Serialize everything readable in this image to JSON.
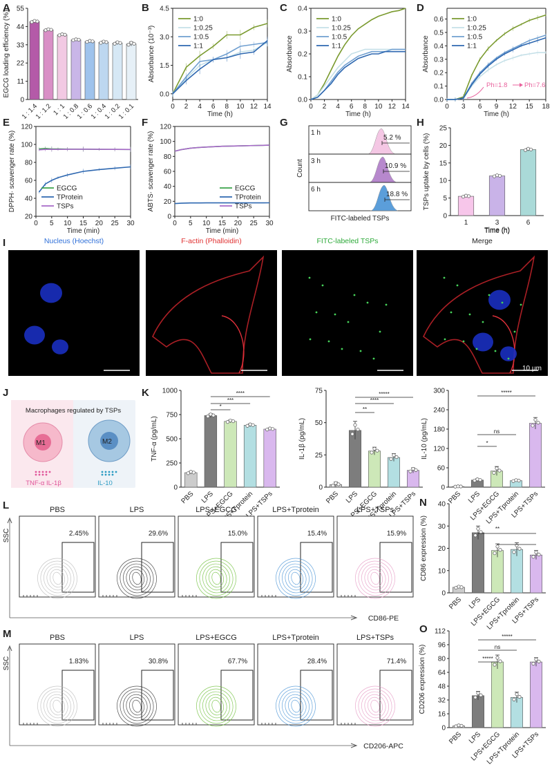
{
  "chart_data": [
    {
      "panel": "A",
      "type": "bar",
      "ylabel": "EGCG loading efficiency (%)",
      "categories": [
        "1 : 1.4",
        "1 : 1.2",
        "1 : 1",
        "1 : 0.8",
        "1 : 0.6",
        "1 : 0.4",
        "1 : 0.2",
        "1 : 0.1"
      ],
      "values": [
        47,
        42,
        39,
        36,
        35,
        34.5,
        34,
        33.5
      ],
      "errors": [
        0.7,
        0.6,
        0.6,
        0.5,
        0.6,
        0.8,
        0.9,
        1.2
      ],
      "ylim": [
        0,
        55
      ],
      "yticks": [
        "0",
        "11",
        "22",
        "33",
        "44",
        "55"
      ],
      "colors": [
        "#b45aa8",
        "#d98fc6",
        "#f2c9e3",
        "#c9b6e8",
        "#9fc3ec",
        "#bdd7f0",
        "#d6e8f5",
        "#e6f0f7"
      ]
    },
    {
      "panel": "B",
      "type": "line",
      "xlabel": "Time (h)",
      "ylabel": "Absorbance (10⁻³)",
      "x": [
        0,
        2,
        4,
        6,
        8,
        10,
        12,
        14
      ],
      "xlim": [
        0,
        14
      ],
      "ylim": [
        -0.3,
        4.5
      ],
      "xticks": [
        "0",
        "2",
        "4",
        "6",
        "8",
        "10",
        "12",
        "14"
      ],
      "yticks": [
        "0.0",
        "1.5",
        "3.0",
        "4.5"
      ],
      "legend": "top-left",
      "series": [
        {
          "name": "1:0",
          "color": "#7a9a2e",
          "values": [
            0.0,
            1.4,
            2.0,
            2.5,
            3.1,
            3.1,
            3.5,
            3.7
          ]
        },
        {
          "name": "1:0.25",
          "color": "#c5e0e8",
          "values": [
            0.0,
            0.8,
            1.5,
            1.8,
            1.9,
            2.2,
            2.3,
            2.7
          ]
        },
        {
          "name": "1:0.5",
          "color": "#6f9fd0",
          "values": [
            0.0,
            0.9,
            1.7,
            1.8,
            2.1,
            2.5,
            2.6,
            2.7
          ]
        },
        {
          "name": "1:1",
          "color": "#2d67b0",
          "values": [
            0.0,
            0.7,
            1.3,
            1.8,
            1.9,
            2.1,
            2.2,
            2.8
          ]
        }
      ]
    },
    {
      "panel": "C",
      "type": "line",
      "xlabel": "Time (h)",
      "ylabel": "Absorbance",
      "x": [
        0,
        1,
        2,
        3,
        4,
        5,
        6,
        7,
        8,
        9,
        10,
        11,
        12,
        13,
        14
      ],
      "xlim": [
        0,
        14
      ],
      "ylim": [
        0,
        0.4
      ],
      "xticks": [
        "0",
        "2",
        "4",
        "6",
        "8",
        "10",
        "12",
        "14"
      ],
      "yticks": [
        "0.0",
        "0.1",
        "0.2",
        "0.3",
        "0.4"
      ],
      "legend": "top-left",
      "series": [
        {
          "name": "1:0",
          "color": "#7a9a2e",
          "values": [
            0.0,
            0.02,
            0.07,
            0.13,
            0.19,
            0.24,
            0.28,
            0.31,
            0.33,
            0.35,
            0.365,
            0.375,
            0.385,
            0.39,
            0.4
          ]
        },
        {
          "name": "1:0.25",
          "color": "#c5e0e8",
          "values": [
            0.0,
            0.02,
            0.06,
            0.1,
            0.14,
            0.17,
            0.2,
            0.21,
            0.22,
            0.22,
            0.22,
            0.22,
            0.22,
            0.22,
            0.22
          ]
        },
        {
          "name": "1:0.5",
          "color": "#6f9fd0",
          "values": [
            0.0,
            0.01,
            0.04,
            0.08,
            0.12,
            0.15,
            0.17,
            0.19,
            0.2,
            0.21,
            0.21,
            0.21,
            0.22,
            0.22,
            0.22
          ]
        },
        {
          "name": "1:1",
          "color": "#2d67b0",
          "values": [
            0.0,
            0.01,
            0.04,
            0.07,
            0.11,
            0.14,
            0.16,
            0.18,
            0.19,
            0.2,
            0.2,
            0.21,
            0.21,
            0.21,
            0.21
          ]
        }
      ]
    },
    {
      "panel": "D",
      "type": "line",
      "xlabel": "Time (h)",
      "ylabel": "Absorbance",
      "x": [
        0,
        1.5,
        3,
        4.5,
        6,
        7.5,
        9,
        10.5,
        12,
        13.5,
        15,
        16.5,
        18
      ],
      "xlim": [
        0,
        18
      ],
      "ylim": [
        0,
        0.68
      ],
      "xticks": [
        "0",
        "3",
        "6",
        "9",
        "12",
        "15",
        "18"
      ],
      "yticks": [
        "0.0",
        "0.1",
        "0.2",
        "0.3",
        "0.4",
        "0.5",
        "0.6"
      ],
      "legend": "top-left",
      "annotation": {
        "from": "Ph=1.8",
        "to": "Ph=7.6",
        "color": "#e8609c"
      },
      "series": [
        {
          "name": "1:0",
          "color": "#7a9a2e",
          "values": [
            0.0,
            0.0,
            0.02,
            0.18,
            0.3,
            0.38,
            0.44,
            0.49,
            0.53,
            0.56,
            0.59,
            0.61,
            0.63
          ]
        },
        {
          "name": "1:0.25",
          "color": "#c5e0e8",
          "values": [
            0.0,
            0.0,
            0.01,
            0.1,
            0.17,
            0.22,
            0.26,
            0.29,
            0.31,
            0.33,
            0.34,
            0.35,
            0.35
          ]
        },
        {
          "name": "1:0.5",
          "color": "#6f9fd0",
          "values": [
            0.0,
            0.0,
            0.01,
            0.12,
            0.2,
            0.26,
            0.31,
            0.35,
            0.38,
            0.41,
            0.44,
            0.46,
            0.48
          ]
        },
        {
          "name": "1:1",
          "color": "#2d67b0",
          "values": [
            0.0,
            0.0,
            0.01,
            0.11,
            0.19,
            0.25,
            0.3,
            0.34,
            0.37,
            0.4,
            0.42,
            0.44,
            0.46
          ]
        }
      ]
    },
    {
      "panel": "E",
      "type": "line",
      "xlabel": "Time (min)",
      "ylabel": "DPPH· scavenger rate (%)",
      "x": [
        1,
        3,
        5,
        7,
        10,
        15,
        20,
        25,
        30
      ],
      "xlim": [
        0,
        30
      ],
      "ylim": [
        20,
        120
      ],
      "xticks": [
        "0",
        "5",
        "10",
        "15",
        "20",
        "25",
        "30"
      ],
      "yticks": [
        "20",
        "40",
        "60",
        "80",
        "100",
        "120"
      ],
      "legend": "bottom-left",
      "series": [
        {
          "name": "EGCG",
          "color": "#3aa24a",
          "values": [
            95,
            95.5,
            95,
            95,
            94.8,
            94.7,
            94.5,
            94.5,
            94.4
          ]
        },
        {
          "name": "TProtein",
          "color": "#2d67b0",
          "values": [
            47,
            56,
            60,
            63,
            66,
            70,
            72,
            73.5,
            75
          ]
        },
        {
          "name": "TSPs",
          "color": "#a668c8",
          "values": [
            94,
            94.5,
            94.5,
            94.5,
            94.6,
            94.7,
            94.6,
            94.5,
            94.4
          ]
        }
      ]
    },
    {
      "panel": "F",
      "type": "line",
      "xlabel": "Time (min)",
      "ylabel": "ABTS· scavenger rate (%)",
      "x": [
        0,
        2,
        5,
        8,
        10,
        15,
        20,
        25,
        30
      ],
      "xlim": [
        0,
        30
      ],
      "ylim": [
        0,
        120
      ],
      "xticks": [
        "0",
        "5",
        "10",
        "15",
        "20",
        "25",
        "30"
      ],
      "yticks": [
        "0",
        "20",
        "40",
        "60",
        "80",
        "100",
        "120"
      ],
      "legend": "bottom-right",
      "series": [
        {
          "name": "EGCG",
          "color": "#3aa24a",
          "values": [
            87,
            89,
            91,
            92,
            92.5,
            93.5,
            94,
            94.5,
            95
          ]
        },
        {
          "name": "TProtein",
          "color": "#2d67b0",
          "values": [
            17,
            17.5,
            17.8,
            17.8,
            17.9,
            17.9,
            17.9,
            17.9,
            18
          ]
        },
        {
          "name": "TSPs",
          "color": "#a668c8",
          "values": [
            87,
            89,
            91,
            92,
            92.5,
            93.5,
            94,
            94.5,
            95
          ]
        }
      ]
    },
    {
      "panel": "G",
      "type": "histogram",
      "xlabel": "FITC-labeled TSPs",
      "ylabel": "Count",
      "rows": [
        {
          "label": "1 h",
          "gate": "5.2 %",
          "color": "#f3c2e2"
        },
        {
          "label": "3 h",
          "gate": "10.9 %",
          "color": "#b07cc8"
        },
        {
          "label": "6 h",
          "gate": "18.8 %",
          "color": "#4a94d6"
        }
      ]
    },
    {
      "panel": "H",
      "type": "bar",
      "xlabel": "Time (h)",
      "ylabel": "TSPs uptake by cells (%)",
      "categories": [
        "1",
        "3",
        "6"
      ],
      "values": [
        5.5,
        11.3,
        18.8
      ],
      "errors": [
        0.3,
        0.3,
        0.4
      ],
      "ylim": [
        0,
        25
      ],
      "yticks": [
        "0",
        "5",
        "10",
        "15",
        "20",
        "25"
      ],
      "colors": [
        "#f7c6ea",
        "#c9b3e8",
        "#aadad8"
      ]
    },
    {
      "panel": "K1",
      "type": "bar",
      "ylabel": "TNF-α (pg/mL)",
      "categories": [
        "PBS",
        "LPS",
        "LPS+EGCG",
        "LPS+Tprotein",
        "LPS+TSPs"
      ],
      "values": [
        150,
        740,
        680,
        640,
        600
      ],
      "errors": [
        15,
        20,
        15,
        15,
        12
      ],
      "ylim": [
        0,
        1000
      ],
      "yticks": [
        "0",
        "250",
        "500",
        "750",
        "1000"
      ],
      "significance": [
        "*",
        "***",
        "****"
      ]
    },
    {
      "panel": "K2",
      "type": "bar",
      "ylabel": "IL-1β (pg/mL)",
      "categories": [
        "PBS",
        "LPS",
        "LPS+EGCG",
        "LPS+Tprotein",
        "LPS+TSPs"
      ],
      "values": [
        2,
        44,
        28,
        23,
        13
      ],
      "errors": [
        2,
        7,
        3,
        3,
        2
      ],
      "ylim": [
        0,
        75
      ],
      "yticks": [
        "0",
        "25",
        "50",
        "75"
      ],
      "significance": [
        "**",
        "****",
        "*****"
      ]
    },
    {
      "panel": "K3",
      "type": "bar",
      "ylabel": "IL-10 (pg/mL)",
      "categories": [
        "PBS",
        "LPS",
        "LPS+EGCG",
        "LPS+Tprotein",
        "LPS+TSPs"
      ],
      "values": [
        2,
        22,
        50,
        20,
        198
      ],
      "errors": [
        1,
        4,
        14,
        3,
        18
      ],
      "ylim": [
        0,
        300
      ],
      "yticks": [
        "0",
        "60",
        "120",
        "180",
        "240",
        "300"
      ],
      "significance": [
        "*",
        "ns",
        "*****"
      ]
    },
    {
      "panel": "N",
      "type": "bar",
      "ylabel": "CD86 expression (%)",
      "categories": [
        "PBS",
        "LPS",
        "LPS+EGCG",
        "LPS+Tprotein",
        "LPS+TSPs"
      ],
      "values": [
        2.5,
        27,
        19,
        19.5,
        17
      ],
      "errors": [
        0.5,
        3,
        3,
        3,
        2
      ],
      "ylim": [
        0,
        40
      ],
      "yticks": [
        "0",
        "10",
        "20",
        "30",
        "40"
      ],
      "significance": [
        "**"
      ]
    },
    {
      "panel": "O",
      "type": "bar",
      "ylabel": "CD206 expression (%)",
      "categories": [
        "PBS",
        "LPS",
        "LPS+EGCG",
        "LPS+Tprotein",
        "LPS+TSPs"
      ],
      "values": [
        2,
        37,
        76,
        35,
        76
      ],
      "errors": [
        1,
        5,
        8,
        6,
        5
      ],
      "ylim": [
        0,
        112
      ],
      "yticks": [
        "0",
        "16",
        "32",
        "48",
        "64",
        "80",
        "96",
        "112"
      ],
      "significance": [
        "*****",
        "ns",
        "*****"
      ]
    }
  ],
  "panel_letters": [
    "A",
    "B",
    "C",
    "D",
    "E",
    "F",
    "G",
    "H",
    "I",
    "J",
    "K",
    "L",
    "M",
    "N",
    "O"
  ],
  "bar_palette": [
    "#cccccc",
    "#7d7d7d",
    "#cde8b8",
    "#b3dfe2",
    "#d9b8ee"
  ],
  "microscopy": {
    "titles": [
      "Nucleus (Hoechst)",
      "F-actin (Phalloidin)",
      "FITC-labeled TSPs",
      "Merge"
    ],
    "title_colors": [
      "#2e6fd8",
      "#e03030",
      "#2eaa3a",
      "#222222"
    ],
    "scale": "10 μm"
  },
  "schematic": {
    "title": "Macrophages regulated by TSPs",
    "m1": "M1",
    "m2": "M2",
    "left_label": "TNF-α  IL-1β",
    "right_label": "IL-10",
    "left_color": "#e0559a",
    "right_color": "#2b9bc2"
  },
  "flow_L": {
    "axis_y": "SSC",
    "axis_x": "CD86-PE",
    "panels": [
      {
        "name": "PBS",
        "pct": "2.45%",
        "color": "#bbbbbb"
      },
      {
        "name": "LPS",
        "pct": "29.6%",
        "color": "#333333"
      },
      {
        "name": "LPS+EGCG",
        "pct": "15.0%",
        "color": "#6fbf3a"
      },
      {
        "name": "LPS+Tprotein",
        "pct": "15.4%",
        "color": "#4a94d6"
      },
      {
        "name": "LPS+TSPs",
        "pct": "15.9%",
        "color": "#e59ac4"
      }
    ]
  },
  "flow_M": {
    "axis_y": "SSC",
    "axis_x": "CD206-APC",
    "panels": [
      {
        "name": "PBS",
        "pct": "1.83%",
        "color": "#bbbbbb"
      },
      {
        "name": "LPS",
        "pct": "30.8%",
        "color": "#333333"
      },
      {
        "name": "LPS+EGCG",
        "pct": "67.7%",
        "color": "#6fbf3a"
      },
      {
        "name": "LPS+Tprotein",
        "pct": "28.4%",
        "color": "#4a94d6"
      },
      {
        "name": "LPS+TSPs",
        "pct": "71.4%",
        "color": "#e59ac4"
      }
    ]
  }
}
